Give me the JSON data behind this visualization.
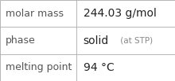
{
  "rows": [
    {
      "label": "molar mass",
      "value_parts": [
        {
          "text": "244.03 g/mol",
          "bold": false,
          "fontsize": 10
        }
      ]
    },
    {
      "label": "phase",
      "value_parts": [
        {
          "text": "solid",
          "bold": false,
          "fontsize": 10
        },
        {
          "text": " (at STP)",
          "bold": false,
          "fontsize": 7.5
        }
      ]
    },
    {
      "label": "melting point",
      "value_parts": [
        {
          "text": "94 °C",
          "bold": false,
          "fontsize": 10
        }
      ]
    }
  ],
  "col_split": 0.435,
  "background_color": "#ffffff",
  "border_color": "#aaaaaa",
  "label_fontsize": 9,
  "label_color": "#555555",
  "value_color": "#222222",
  "small_color": "#888888",
  "lw": 0.6
}
